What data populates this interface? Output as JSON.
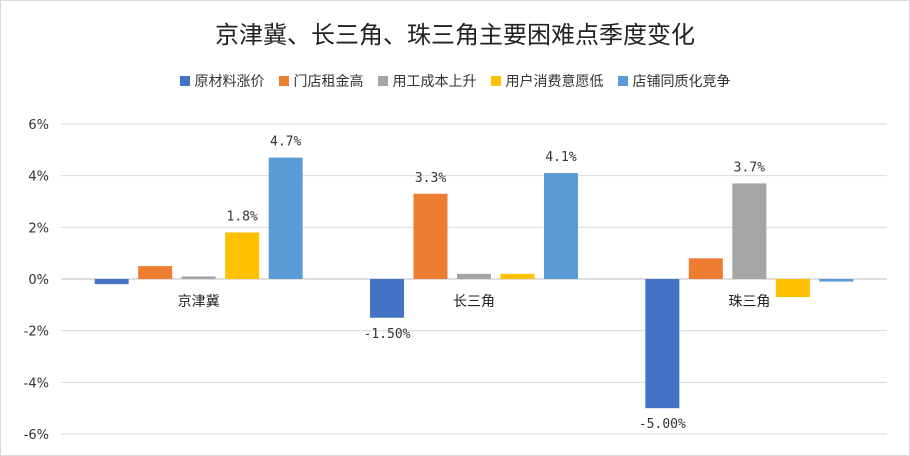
{
  "chart_data": {
    "type": "bar",
    "title": "京津冀、长三角、珠三角主要困难点季度变化",
    "categories": [
      "京津冀",
      "长三角",
      "珠三角"
    ],
    "series": [
      {
        "name": "原材料涨价",
        "color": "#4472C4",
        "values": [
          -0.2,
          -1.5,
          -5.0
        ],
        "labels": [
          "",
          "-1.50%",
          "-5.00%"
        ]
      },
      {
        "name": "门店租金高",
        "color": "#ED7D31",
        "values": [
          0.5,
          3.3,
          0.8
        ],
        "labels": [
          "",
          "3.3%",
          ""
        ]
      },
      {
        "name": "用工成本上升",
        "color": "#A5A5A5",
        "values": [
          0.1,
          0.2,
          3.7
        ],
        "labels": [
          "",
          "",
          "3.7%"
        ]
      },
      {
        "name": "用户消费意愿低",
        "color": "#FFC000",
        "values": [
          1.8,
          0.2,
          -0.7
        ],
        "labels": [
          "1.8%",
          "",
          ""
        ]
      },
      {
        "name": "店铺同质化竞争",
        "color": "#5B9BD5",
        "values": [
          4.7,
          4.1,
          -0.1
        ],
        "labels": [
          "4.7%",
          "4.1%",
          ""
        ]
      }
    ],
    "y_ticks": [
      "6%",
      "4%",
      "2%",
      "0%",
      "-2%",
      "-4%",
      "-6%"
    ],
    "ylim": [
      -6,
      6
    ],
    "grid": true,
    "legend_position": "top"
  }
}
